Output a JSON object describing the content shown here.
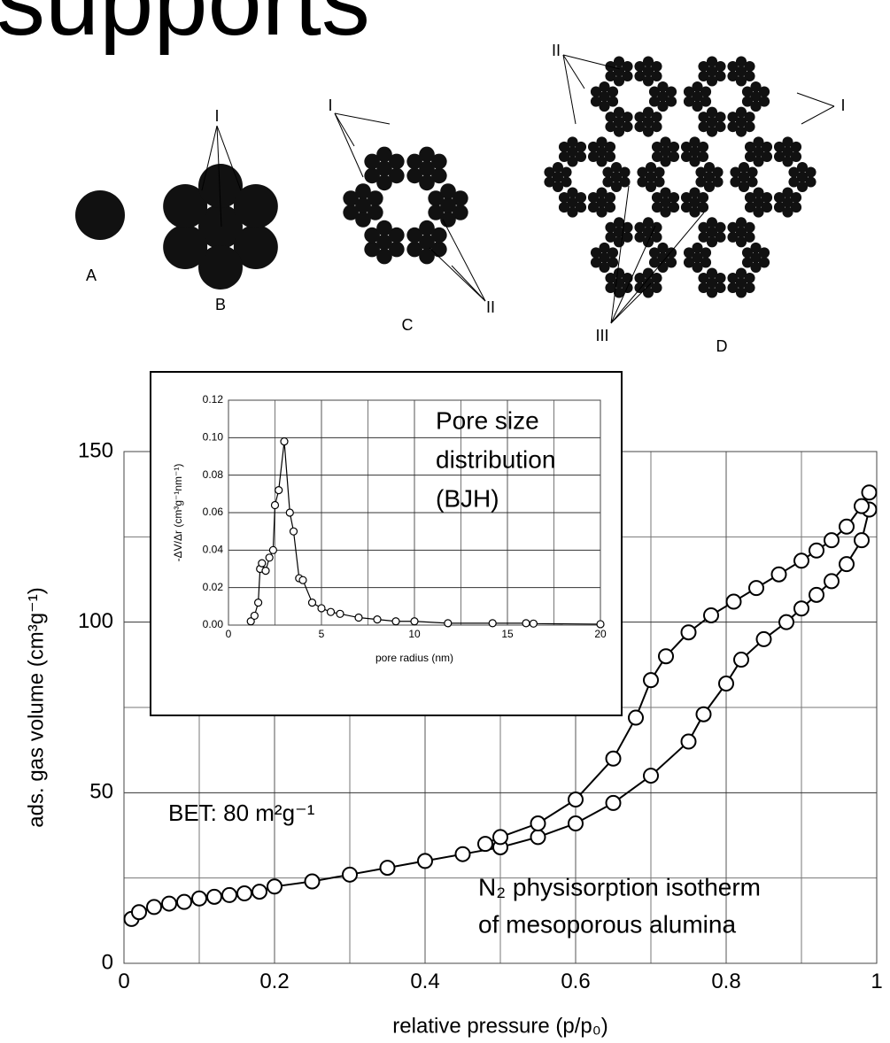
{
  "title": "supports",
  "diagram": {
    "labels": [
      "A",
      "B",
      "C",
      "D"
    ],
    "callouts": [
      "I",
      "I",
      "II",
      "II",
      "I",
      "III"
    ]
  },
  "chart_data": [
    {
      "type": "line",
      "xlabel": "relative pressure  (p/p₀)",
      "ylabel": "ads. gas volume (cm³g⁻¹)",
      "annotations": [
        "BET: 80 m²g⁻¹",
        "N₂ physisorption isotherm",
        "of mesoporous alumina"
      ],
      "xlim": [
        0,
        1
      ],
      "ylim": [
        0,
        150
      ],
      "xticks": [
        0,
        0.2,
        0.4,
        0.6,
        0.8,
        1
      ],
      "yticks": [
        0,
        50,
        100,
        150
      ],
      "minor_xticks": [
        0.1,
        0.3,
        0.5,
        0.7,
        0.9
      ],
      "minor_yticks": [
        25,
        75,
        125
      ],
      "grid": true,
      "marker": "circle",
      "series": [
        {
          "color": "#000000",
          "x": [
            0.01,
            0.02,
            0.04,
            0.06,
            0.08,
            0.1,
            0.12,
            0.14,
            0.16,
            0.18,
            0.2,
            0.25,
            0.3,
            0.35,
            0.4,
            0.45,
            0.5,
            0.55,
            0.6,
            0.65,
            0.7,
            0.75,
            0.77,
            0.8,
            0.82,
            0.85,
            0.88,
            0.9,
            0.92,
            0.94,
            0.96,
            0.98,
            0.99
          ],
          "values": [
            13,
            15,
            16.5,
            17.5,
            18,
            19,
            19.5,
            20,
            20.5,
            21,
            22.5,
            24,
            26,
            28,
            30,
            32,
            34,
            37,
            41,
            47,
            55,
            65,
            73,
            82,
            89,
            95,
            100,
            104,
            108,
            112,
            117,
            124,
            133
          ]
        },
        {
          "color": "#000000",
          "x": [
            0.99,
            0.98,
            0.96,
            0.94,
            0.92,
            0.9,
            0.87,
            0.84,
            0.81,
            0.78,
            0.75,
            0.72,
            0.7,
            0.68,
            0.65,
            0.6,
            0.55,
            0.5,
            0.48
          ],
          "values": [
            138,
            134,
            128,
            124,
            121,
            118,
            114,
            110,
            106,
            102,
            97,
            90,
            83,
            72,
            60,
            48,
            41,
            37,
            35
          ]
        }
      ]
    },
    {
      "type": "line",
      "xlabel": "pore radius (nm)",
      "ylabel": "-ΔV/Δr  (cm³g⁻¹nm⁻¹)",
      "annotations": [
        "Pore size",
        "distribution",
        "(BJH)"
      ],
      "xlim": [
        0,
        20
      ],
      "ylim": [
        0,
        0.12
      ],
      "xticks": [
        0,
        5,
        10,
        15,
        20
      ],
      "yticks": [
        {
          "value": 0,
          "label": "0.00"
        },
        {
          "value": 0.02,
          "label": "0.02"
        },
        {
          "value": 0.04,
          "label": "0.04"
        },
        {
          "value": 0.06,
          "label": "0.06"
        },
        {
          "value": 0.08,
          "label": "0.08"
        },
        {
          "value": 0.1,
          "label": "0.10"
        },
        {
          "value": 0.12,
          "label": "0.12"
        }
      ],
      "minor_xticks": [
        2.5,
        7.5,
        12.5,
        17.5
      ],
      "minor_yticks": [],
      "grid": true,
      "marker": "circle",
      "series": [
        {
          "color": "#000000",
          "x": [
            1.2,
            1.4,
            1.6,
            1.7,
            1.8,
            2.0,
            2.2,
            2.4,
            2.5,
            2.7,
            3.0,
            3.3,
            3.5,
            3.8,
            4.0,
            4.5,
            5,
            5.5,
            6,
            7,
            8,
            9,
            10,
            11.8,
            14.2,
            16,
            16.4,
            20
          ],
          "values": [
            0.002,
            0.005,
            0.012,
            0.03,
            0.033,
            0.029,
            0.036,
            0.04,
            0.064,
            0.072,
            0.098,
            0.06,
            0.05,
            0.025,
            0.024,
            0.012,
            0.009,
            0.007,
            0.006,
            0.004,
            0.003,
            0.002,
            0.002,
            0.001,
            0.001,
            0.001,
            0.0008,
            0.0005
          ]
        }
      ]
    }
  ]
}
